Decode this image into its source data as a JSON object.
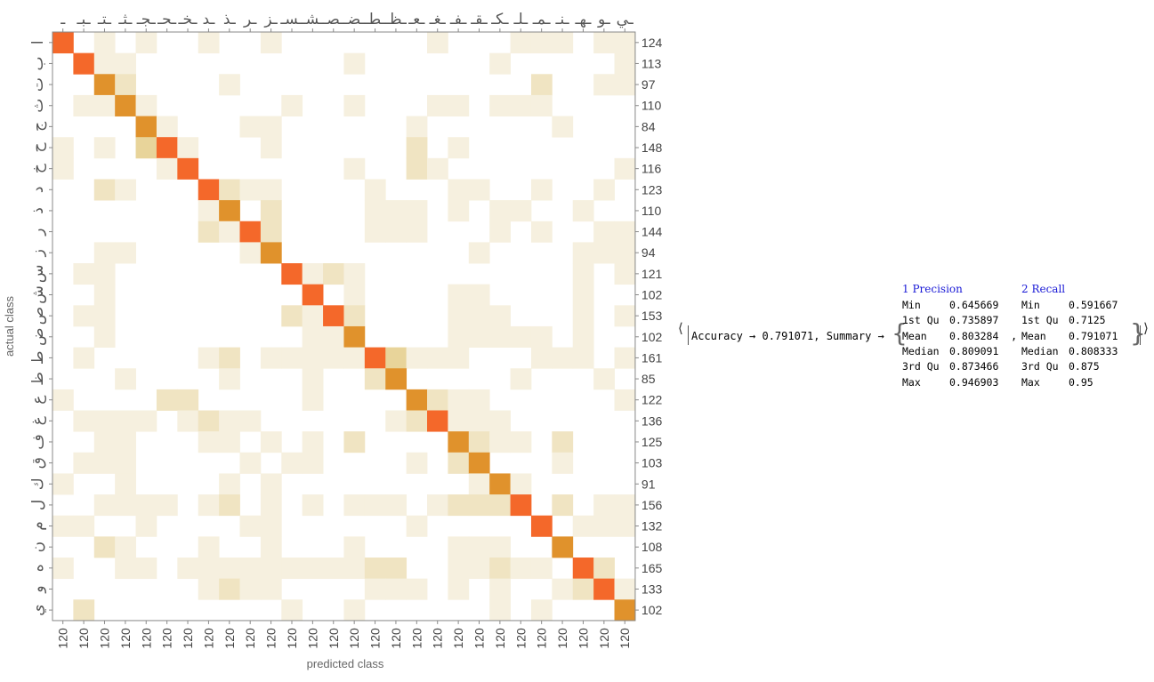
{
  "chart_data": {
    "type": "heatmap",
    "title": "",
    "xlabel": "predicted class",
    "ylabel": "actual class",
    "rows": [
      "ا",
      "ب",
      "ت",
      "ث",
      "ج",
      "ح",
      "خ",
      "د",
      "ذ",
      "ر",
      "ز",
      "س",
      "ش",
      "ص",
      "ض",
      "ط",
      "ظ",
      "ع",
      "غ",
      "ف",
      "ق",
      "ك",
      "ل",
      "م",
      "ن",
      "ه",
      "و",
      "ي"
    ],
    "columns": [
      "ـ",
      "ـبـ",
      "ـتـ",
      "ـثـ",
      "ـجـ",
      "ـحـ",
      "ـخـ",
      "ـد",
      "ـذ",
      "ـر",
      "ـز",
      "ـسـ",
      "ـشـ",
      "ـصـ",
      "ـضـ",
      "ـطـ",
      "ـظـ",
      "ـعـ",
      "ـغـ",
      "ـفـ",
      "ـقـ",
      "ـكـ",
      "ـلـ",
      "ـمـ",
      "ـنـ",
      "ـهـ",
      "ـو",
      "ـي"
    ],
    "row_totals": [
      124,
      113,
      97,
      110,
      84,
      148,
      116,
      123,
      110,
      144,
      94,
      121,
      102,
      153,
      102,
      161,
      85,
      122,
      136,
      125,
      103,
      91,
      156,
      132,
      108,
      165,
      133,
      102
    ],
    "column_totals": [
      120,
      120,
      120,
      120,
      120,
      120,
      120,
      120,
      120,
      120,
      120,
      120,
      120,
      120,
      120,
      120,
      120,
      120,
      120,
      120,
      120,
      120,
      120,
      120,
      120,
      120,
      120,
      120
    ],
    "levels": [
      [
        9,
        0,
        1,
        0,
        1,
        0,
        0,
        1,
        0,
        0,
        1,
        0,
        0,
        0,
        0,
        0,
        0,
        0,
        1,
        0,
        0,
        0,
        1,
        1,
        1,
        0,
        1,
        1
      ],
      [
        0,
        9,
        1,
        1,
        0,
        0,
        0,
        0,
        0,
        0,
        0,
        0,
        0,
        0,
        1,
        0,
        0,
        0,
        0,
        0,
        0,
        1,
        0,
        0,
        0,
        0,
        0,
        1
      ],
      [
        0,
        0,
        8,
        2,
        0,
        0,
        0,
        0,
        1,
        0,
        0,
        0,
        0,
        0,
        0,
        0,
        0,
        0,
        0,
        0,
        0,
        0,
        0,
        2,
        0,
        0,
        1,
        1
      ],
      [
        0,
        1,
        1,
        8,
        1,
        0,
        0,
        0,
        0,
        0,
        0,
        1,
        0,
        0,
        1,
        0,
        0,
        0,
        1,
        1,
        0,
        1,
        1,
        1,
        0,
        0,
        0,
        0
      ],
      [
        0,
        0,
        0,
        0,
        7,
        1,
        0,
        0,
        0,
        1,
        1,
        0,
        0,
        0,
        0,
        0,
        0,
        1,
        0,
        0,
        0,
        0,
        0,
        0,
        1,
        0,
        0,
        0
      ],
      [
        1,
        0,
        1,
        0,
        4,
        9,
        1,
        0,
        0,
        0,
        1,
        0,
        0,
        0,
        0,
        0,
        0,
        2,
        0,
        1,
        0,
        0,
        0,
        0,
        0,
        0,
        0,
        0
      ],
      [
        1,
        0,
        0,
        0,
        0,
        1,
        9,
        0,
        0,
        0,
        0,
        0,
        0,
        0,
        1,
        0,
        0,
        2,
        1,
        0,
        0,
        0,
        0,
        0,
        0,
        0,
        0,
        1
      ],
      [
        0,
        0,
        2,
        1,
        0,
        0,
        0,
        9,
        2,
        1,
        1,
        0,
        0,
        0,
        0,
        1,
        0,
        0,
        0,
        1,
        1,
        0,
        0,
        1,
        0,
        0,
        1,
        0
      ],
      [
        0,
        0,
        0,
        0,
        0,
        0,
        0,
        1,
        8,
        0,
        2,
        0,
        0,
        0,
        0,
        1,
        1,
        1,
        0,
        1,
        0,
        1,
        1,
        0,
        0,
        1,
        0,
        0
      ],
      [
        0,
        0,
        0,
        0,
        0,
        0,
        0,
        2,
        1,
        9,
        3,
        0,
        0,
        0,
        0,
        1,
        1,
        1,
        0,
        0,
        0,
        1,
        0,
        1,
        0,
        0,
        1,
        1
      ],
      [
        0,
        0,
        1,
        1,
        0,
        0,
        0,
        0,
        0,
        1,
        7,
        0,
        0,
        0,
        0,
        0,
        0,
        0,
        0,
        0,
        1,
        0,
        0,
        0,
        0,
        1,
        1,
        1
      ],
      [
        0,
        1,
        1,
        0,
        0,
        0,
        0,
        0,
        0,
        0,
        0,
        9,
        1,
        2,
        1,
        0,
        0,
        0,
        0,
        0,
        0,
        0,
        0,
        0,
        0,
        1,
        0,
        1
      ],
      [
        0,
        0,
        1,
        0,
        0,
        0,
        0,
        0,
        0,
        0,
        0,
        0,
        9,
        0,
        1,
        0,
        0,
        0,
        0,
        1,
        1,
        0,
        0,
        0,
        0,
        1,
        0,
        0
      ],
      [
        0,
        1,
        1,
        0,
        0,
        0,
        0,
        0,
        0,
        0,
        0,
        2,
        1,
        9,
        2,
        0,
        0,
        0,
        0,
        1,
        1,
        1,
        0,
        0,
        0,
        1,
        0,
        1
      ],
      [
        0,
        0,
        1,
        0,
        0,
        0,
        0,
        0,
        0,
        0,
        0,
        0,
        1,
        1,
        8,
        0,
        0,
        0,
        0,
        1,
        1,
        1,
        1,
        1,
        0,
        1,
        0,
        0
      ],
      [
        0,
        1,
        0,
        0,
        0,
        0,
        0,
        1,
        2,
        0,
        1,
        1,
        1,
        1,
        1,
        9,
        4,
        1,
        1,
        1,
        0,
        0,
        0,
        1,
        1,
        1,
        0,
        1
      ],
      [
        0,
        0,
        0,
        1,
        0,
        0,
        0,
        0,
        1,
        0,
        0,
        0,
        1,
        0,
        0,
        2,
        7,
        0,
        0,
        0,
        0,
        0,
        1,
        0,
        0,
        0,
        1,
        0
      ],
      [
        1,
        0,
        0,
        0,
        0,
        2,
        2,
        0,
        0,
        0,
        0,
        0,
        1,
        0,
        0,
        0,
        0,
        8,
        2,
        1,
        1,
        0,
        0,
        0,
        0,
        0,
        0,
        1
      ],
      [
        0,
        1,
        1,
        1,
        1,
        0,
        1,
        3,
        1,
        1,
        0,
        0,
        0,
        0,
        0,
        0,
        1,
        2,
        9,
        1,
        1,
        1,
        0,
        0,
        0,
        0,
        0,
        0
      ],
      [
        0,
        0,
        1,
        1,
        0,
        0,
        0,
        1,
        1,
        0,
        1,
        0,
        1,
        0,
        2,
        0,
        0,
        0,
        0,
        8,
        3,
        1,
        1,
        0,
        2,
        0,
        0,
        0
      ],
      [
        0,
        1,
        1,
        1,
        0,
        0,
        0,
        0,
        0,
        1,
        0,
        1,
        1,
        0,
        0,
        0,
        0,
        1,
        0,
        2,
        8,
        0,
        0,
        0,
        1,
        0,
        0,
        0
      ],
      [
        1,
        0,
        0,
        1,
        0,
        0,
        0,
        0,
        1,
        0,
        1,
        0,
        0,
        0,
        0,
        0,
        0,
        0,
        0,
        0,
        1,
        8,
        1,
        0,
        0,
        0,
        0,
        0
      ],
      [
        0,
        0,
        1,
        1,
        1,
        1,
        0,
        1,
        2,
        0,
        1,
        0,
        1,
        0,
        1,
        1,
        1,
        0,
        1,
        2,
        2,
        2,
        9,
        0,
        2,
        0,
        1,
        1
      ],
      [
        1,
        1,
        0,
        0,
        1,
        0,
        0,
        0,
        0,
        1,
        1,
        0,
        0,
        0,
        0,
        0,
        0,
        1,
        0,
        0,
        0,
        0,
        0,
        9,
        0,
        1,
        1,
        1
      ],
      [
        0,
        0,
        3,
        1,
        0,
        0,
        0,
        1,
        0,
        0,
        1,
        0,
        0,
        0,
        1,
        0,
        0,
        0,
        0,
        1,
        1,
        1,
        0,
        0,
        8,
        0,
        0,
        0
      ],
      [
        1,
        0,
        0,
        1,
        1,
        0,
        1,
        1,
        1,
        1,
        1,
        1,
        1,
        1,
        1,
        2,
        2,
        0,
        0,
        1,
        1,
        3,
        1,
        1,
        0,
        9,
        2,
        0
      ],
      [
        0,
        0,
        0,
        0,
        0,
        0,
        0,
        1,
        2,
        1,
        1,
        0,
        0,
        0,
        0,
        1,
        1,
        1,
        0,
        1,
        0,
        1,
        0,
        0,
        1,
        3,
        9,
        1
      ],
      [
        0,
        2,
        0,
        0,
        0,
        0,
        0,
        0,
        0,
        0,
        0,
        1,
        0,
        0,
        1,
        0,
        0,
        0,
        0,
        0,
        0,
        1,
        0,
        1,
        0,
        0,
        0,
        8
      ]
    ],
    "color_scale": {
      "empty": "#ffffff",
      "light": "#f6f0df",
      "mid": "#f0e4c2",
      "medium": "#e8d49a",
      "dark": "#e0922c",
      "max": "#f4682a"
    },
    "grid": false
  },
  "summary": {
    "accuracy_text": "Accuracy → 0.791071, Summary →",
    "open_angle": "⟨",
    "close_angle": "⟩",
    "open_brace": "{",
    "close_brace": "}",
    "separator": ",",
    "columns": [
      {
        "header": "1 Precision",
        "stats": [
          {
            "label": "Min",
            "value": "0.645669"
          },
          {
            "label": "1st Qu",
            "value": "0.735897"
          },
          {
            "label": "Mean",
            "value": "0.803284"
          },
          {
            "label": "Median",
            "value": "0.809091"
          },
          {
            "label": "3rd Qu",
            "value": "0.873466"
          },
          {
            "label": "Max",
            "value": "0.946903"
          }
        ]
      },
      {
        "header": "2 Recall",
        "stats": [
          {
            "label": "Min",
            "value": "0.591667"
          },
          {
            "label": "1st Qu",
            "value": "0.7125"
          },
          {
            "label": "Mean",
            "value": "0.791071"
          },
          {
            "label": "Median",
            "value": "0.808333"
          },
          {
            "label": "3rd Qu",
            "value": "0.875"
          },
          {
            "label": "Max",
            "value": "0.95"
          }
        ]
      }
    ]
  }
}
